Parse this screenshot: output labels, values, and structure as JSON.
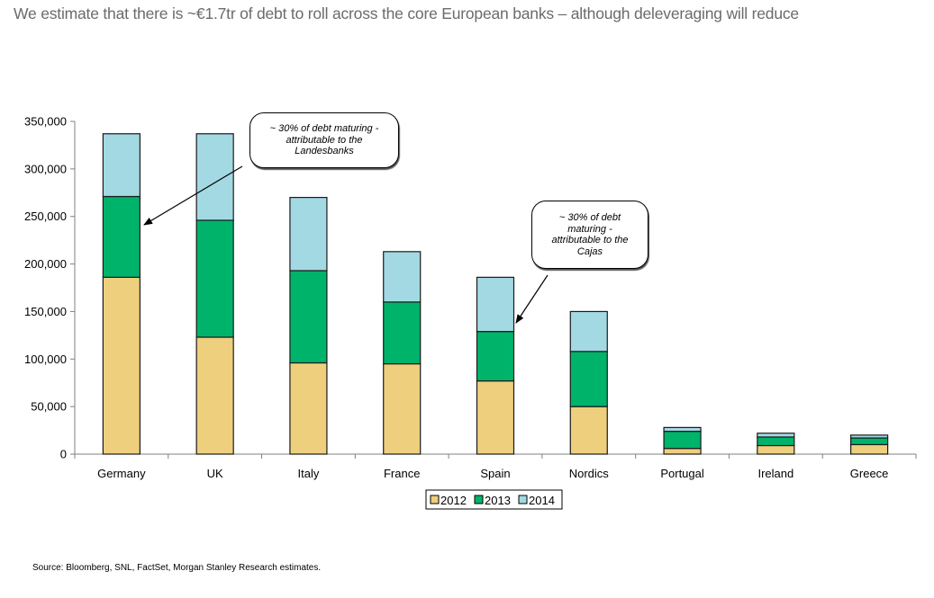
{
  "title": "We estimate that there is ~€1.7tr of debt to roll across the core European banks – although deleveraging will reduce",
  "source": "Source: Bloomberg, SNL, FactSet, Morgan Stanley Research estimates.",
  "annotations": [
    {
      "text": "~ 30% of debt maturing - attributable to the Landesbanks",
      "lines": [
        "~ 30% of debt maturing -",
        "attributable to the",
        "Landesbanks"
      ],
      "points_to": "Germany"
    },
    {
      "text": "~ 30% of debt maturing - attributable to the Cajas",
      "lines": [
        "~ 30% of debt",
        "maturing -",
        "attributable to the",
        "Cajas"
      ],
      "points_to": "Spain"
    }
  ],
  "colors": {
    "2012": "#edcf7e",
    "2013": "#00b36b",
    "2014": "#a3d9e3",
    "axis": "#808080",
    "title": "#6b6b6b"
  },
  "chart_data": {
    "type": "bar",
    "stacked": true,
    "title": "We estimate that there is ~€1.7tr of debt to roll across the core European banks – although deleveraging will reduce",
    "xlabel": "",
    "ylabel": "",
    "ylim": [
      0,
      350000
    ],
    "yticks": [
      0,
      50000,
      100000,
      150000,
      200000,
      250000,
      300000,
      350000
    ],
    "ytick_labels": [
      "0",
      "50,000",
      "100,000",
      "150,000",
      "200,000",
      "250,000",
      "300,000",
      "350,000"
    ],
    "grid": false,
    "legend_position": "bottom-center",
    "categories": [
      "Germany",
      "UK",
      "Italy",
      "France",
      "Spain",
      "Nordics",
      "Portugal",
      "Ireland",
      "Greece"
    ],
    "series": [
      {
        "name": "2012",
        "values": [
          186000,
          123000,
          96000,
          95000,
          77000,
          50000,
          6000,
          9000,
          10000
        ]
      },
      {
        "name": "2013",
        "values": [
          85000,
          123000,
          97000,
          65000,
          52000,
          58000,
          18000,
          9000,
          7000
        ]
      },
      {
        "name": "2014",
        "values": [
          66000,
          91000,
          77000,
          53000,
          57000,
          42000,
          4000,
          4000,
          3000
        ]
      }
    ]
  }
}
